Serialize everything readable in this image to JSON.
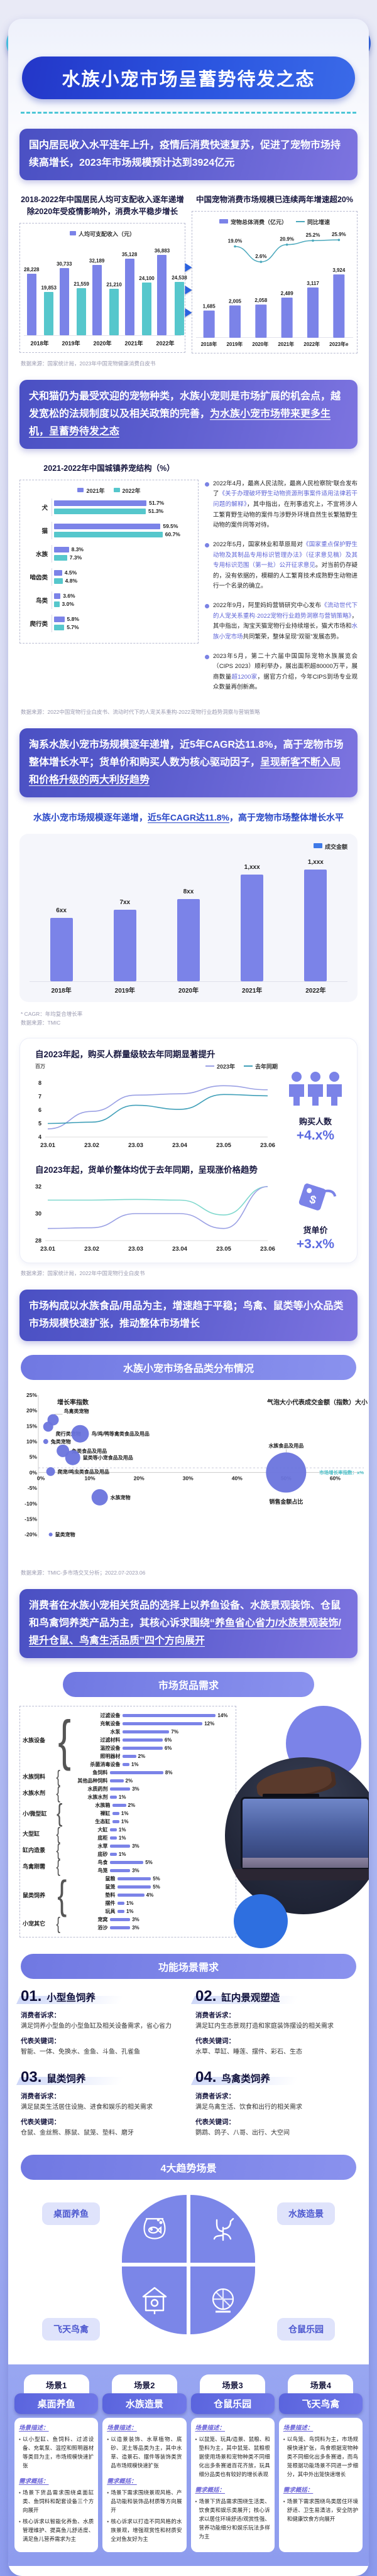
{
  "page_title": "水族小宠市场呈蓄势待发之态",
  "banners": [
    {
      "segments": [
        {
          "t": "国内居民收入水平连年上升，疫情后消费快速复苏，促进了宠物市场持续高增长，2023年市场规模预计达到3924亿元",
          "u": 0
        }
      ]
    },
    {
      "segments": [
        {
          "t": "犬和猫仍为最受欢迎的宠物种类，水族小宠则是市场扩展的机会点，越发宽松的法规制度以及相关政策的完善，",
          "u": 0
        },
        {
          "t": "为水族小宠市场带来更多生机，呈蓄势待发之态",
          "u": 1
        }
      ]
    },
    {
      "segments": [
        {
          "t": "淘系水族小宠市场规模逐年递增，近5年CAGR达11.8%，高于宠物市场整体增长水平；货单价和购买人数为核心驱动因子，",
          "u": 0
        },
        {
          "t": "呈现新客不断入局和价格升级的两大利好趋势",
          "u": 1
        }
      ]
    },
    {
      "segments": [
        {
          "t": "市场构成以水族食品/用品为主，增速趋于平稳；鸟禽、鼠类等小众品类市场规模快速扩张，推动整体市场增长",
          "u": 0
        }
      ]
    },
    {
      "segments": [
        {
          "t": "消费者在水族小宠相关货品的选择上以养鱼设备、水族景观装饰、仓鼠和鸟禽饲养类产品为主，其核心诉求围绕",
          "u": 0
        },
        {
          "t": "“养鱼省心省力/水族景观装饰/提升仓鼠、鸟禽生活品质”四个方向展开",
          "u": 1
        }
      ]
    }
  ],
  "sub3": {
    "segments": [
      {
        "t": "水族小宠市场规模逐年递增，",
        "u": 0
      },
      {
        "t": "近5年CAGR达11.8%",
        "u": 1
      },
      {
        "t": "，高于宠物市场整体增长水平",
        "u": 0
      }
    ]
  },
  "sources": {
    "s1": "数据来源：国家统计局，2023年中国宠物健康消费白皮书",
    "s2": "数据来源：2022中国宠物行业白皮书、流动时代下的人宠关系重构-2022宠物行业趋势洞察与营销策略",
    "s3a": "* CAGR：年均复合增长率",
    "s3b": "数据来源：TMIC",
    "s4": "数据来源：国家统计局，2022年中国宠物行业白皮书",
    "s5": "数据来源：TMIC-多市场交叉分析；2022.07-2023.06"
  },
  "pills": {
    "bubble": "水族小宠市场各品类分布情况",
    "goods": "市场货品需求",
    "func": "功能场景需求",
    "trend": "4大趋势场景"
  },
  "policy": [
    {
      "segments": [
        {
          "t": "2022年4月，最高人民法院，最高人民检察院”联合发布了",
          "h": 0
        },
        {
          "t": "《关于办理破坏野生动物资源刑事案件适用法律若干问题的解释》",
          "h": 1
        },
        {
          "t": "，其中指出，在刑事追究上，不宜将涉人工繁育野生动物的案件与涉野外环境自然生长繁殖野生动物的案件同等对待。",
          "h": 0
        }
      ]
    },
    {
      "segments": [
        {
          "t": "2022年5月，国家林业和草原局对",
          "h": 0
        },
        {
          "t": "《国家重点保护野生动物及其制品专用标识管理办法》（征求意见稿）及其专用标识范围（第一批）公开征求意见",
          "h": 1
        },
        {
          "t": "。对当前仍存疑的，没有依据的，模糊的人工繁育技术成熟野生动物进行一个名录的确立。",
          "h": 0
        }
      ]
    },
    {
      "segments": [
        {
          "t": "2022年9月，阿里妈妈营销研究中心发布",
          "h": 0
        },
        {
          "t": "《流动世代下的人宠关系重构·2022宠物行业趋势洞察与营销策略》",
          "h": 1
        },
        {
          "t": "，其中指出，淘宝天猫宠物行业持续增长，猫犬市场和",
          "h": 0
        },
        {
          "t": "水族小宠市场",
          "h": 1
        },
        {
          "t": "共同繁荣，整体呈现“双驱”发展态势。",
          "h": 0
        }
      ]
    },
    {
      "segments": [
        {
          "t": "2023年5月，第二十六届中国国际宠物水族展览会（CIPS 2023）顺利举办，展出面积超80000万平，展商数量",
          "h": 0
        },
        {
          "t": "超1200家",
          "h": 1
        },
        {
          "t": "，据官方介绍，今年CIPS到场专业观众数量再创新高。",
          "h": 0
        }
      ]
    }
  ],
  "stats": {
    "buyers": {
      "label": "购买人数",
      "value": "+4.x%"
    },
    "price": {
      "label": "货单价",
      "value": "+3.x%"
    }
  },
  "func_labels": {
    "demand": "消费者诉求：",
    "keywords": "代表关键词："
  },
  "func_items": [
    {
      "num": "01.",
      "title": "小型鱼饲养",
      "demand": "满足饲养小型鱼的小型鱼缸及相关设备需求，省心省力",
      "keywords": "智能、一体、免换水、金鱼、斗鱼、孔雀鱼"
    },
    {
      "num": "02.",
      "title": "缸内景观塑造",
      "demand": "满足缸内生态景观打造和家庭装饰摆设的相关需求",
      "keywords": "水草、草缸、睡莲、摆件、彩石、生态"
    },
    {
      "num": "03.",
      "title": "鼠类饲养",
      "demand": "满足鼠类生活居住设施、进食和娱乐的相关需求",
      "keywords": "仓鼠、金丝熊、豚鼠、鼠笼、垫料、磨牙"
    },
    {
      "num": "04.",
      "title": "鸟禽类饲养",
      "demand": "满足鸟禽生活、饮食和出行的相关需求",
      "keywords": "鹦鹉、鸽子、八哥、出行、大空间"
    }
  ],
  "quad_labels": [
    "桌面养鱼",
    "水族造景",
    "飞天鸟禽",
    "仓鼠乐园"
  ],
  "scene_labels": {
    "desc": "场景描述：",
    "needs": "需求概括："
  },
  "scenes": [
    {
      "tag": "场景1",
      "name": "桌面养鱼",
      "desc": [
        "以小型缸、鱼饲料、过滤设备、充氧泵、温控和照明器材等类目为主，市场规模快速扩张"
      ],
      "needs": [
        "场景下货品需求围绕桌面缸类、鱼饲料和配套设备三个方向展开",
        "核心诉求以智能化养鱼、水质管理维护、提高鱼儿舒适度、满足鱼儿营养需求为主"
      ]
    },
    {
      "tag": "场景2",
      "name": "水族造景",
      "desc": [
        "以造景装饰、水草植物、底砂、泥土等品类为主，其中水草、造景石、摆件等装饰类货品市场规模快速扩张"
      ],
      "needs": [
        "场景下需求围绕景观风格、产品功能和装饰品材质等方向展开",
        "核心诉求以打造不同风格的水族景观，增强观赏性和材质安全对鱼友好为主"
      ]
    },
    {
      "tag": "场景3",
      "name": "仓鼠乐园",
      "desc": [
        "以鼠笼、玩具/造景、鼠粮、和垫料为主，其中鼠笼、鼠粮根据使用场景和宠物种类不同细化出多条赛道百花齐放，玩具细分品类也有较好的增长表现"
      ],
      "needs": [
        "场景下货品需求围绕生活类、饮食类和娱乐类展开；核心诉求以居住环境舒适/观赏性强、营养功能细分和娱乐玩法多样为主"
      ]
    },
    {
      "tag": "场景4",
      "name": "飞天鸟禽",
      "desc": [
        "以鸟笼、鸟饲料为主，市场规模快速扩张，鸟食根据宠物种类不同细化出多条赛道，而鸟笼根据功能场景不同进一步细分，其中外出笼快速增长"
      ],
      "needs": [
        "场景下需求围绕鸟类居住环境舒适、卫生易清洁，安全防护和健康饮食方向展开"
      ]
    }
  ],
  "chart_data": [
    {
      "id": "income",
      "type": "bar",
      "title": [
        "2018-2022年中国居民人均可支配收入逐年递增",
        "除2020年受疫情影响外，消费水平稳步增长"
      ],
      "legend": [
        "人均可支配收入（元）"
      ],
      "categories": [
        "2018年",
        "2019年",
        "2020年",
        "2021年",
        "2022年"
      ],
      "series": [
        {
          "name": "人均可支配收入",
          "color": "#7b83e8",
          "values": [
            28228,
            30733,
            32189,
            35128,
            36883
          ],
          "labels": [
            "28,228",
            "30,733",
            "32,189",
            "35,128",
            "36,883"
          ]
        },
        {
          "name": "",
          "color": "#56c7cc",
          "values": [
            19853,
            21559,
            21210,
            24100,
            24538
          ],
          "labels": [
            "19,853",
            "21,559",
            "21,210",
            "24,100",
            "24,538"
          ]
        }
      ],
      "ylim": [
        0,
        40000
      ]
    },
    {
      "id": "pet_market",
      "type": "bar+line",
      "title": "中国宠物消费市场规模已连续两年增速超20%",
      "legend": [
        "宠物总体消费（亿元）",
        "同比增速"
      ],
      "categories": [
        "2018年",
        "2019年",
        "2020年",
        "2021年",
        "2022年",
        "2023年e"
      ],
      "values": [
        1685,
        2005,
        2058,
        2489,
        3117,
        3924
      ],
      "value_labels": [
        "1,685",
        "2,005",
        "2,058",
        "2,489",
        "3,117",
        "3,924"
      ],
      "growth": [
        null,
        19.0,
        2.6,
        20.9,
        25.2,
        25.9
      ],
      "growth_labels": [
        "",
        "19.0%",
        "2.6%",
        "20.9%",
        "25.2%",
        "25.9%"
      ],
      "ylim": [
        0,
        4200
      ]
    },
    {
      "id": "pet_structure",
      "type": "hbar",
      "title": "2021-2022年中国城镇养宠结构（%）",
      "legend": [
        "2021年",
        "2022年"
      ],
      "categories": [
        "犬",
        "猫",
        "水族",
        "啮齿类",
        "鸟类",
        "爬行类"
      ],
      "series": [
        {
          "name": "2021年",
          "color": "#7b83e8",
          "values": [
            51.7,
            59.5,
            8.3,
            4.5,
            3.6,
            5.8
          ]
        },
        {
          "name": "2022年",
          "color": "#56c7cc",
          "values": [
            51.3,
            60.7,
            7.3,
            4.8,
            3.0,
            5.7
          ]
        }
      ],
      "xlim": [
        0,
        65
      ]
    },
    {
      "id": "gmv",
      "type": "bar",
      "legend": [
        "成交金额"
      ],
      "categories": [
        "2018年",
        "2019年",
        "2020年",
        "2021年",
        "2022年"
      ],
      "values": [
        620,
        700,
        800,
        1040,
        1090
      ],
      "value_labels": [
        "6xx",
        "7xx",
        "8xx",
        "1,xxx",
        "1,xxx"
      ]
    },
    {
      "id": "buyers",
      "type": "line",
      "title": "自2023年起，购买人群量级较去年同期显著提升",
      "unit": "百万",
      "legend": [
        "2023年",
        "去年同期"
      ],
      "x": [
        "23.01",
        "23.02",
        "23.03",
        "23.04",
        "23.05",
        "23.06"
      ],
      "series": [
        {
          "name": "2023年",
          "color": "#9aa0e4",
          "values": [
            4.6,
            5.9,
            7.1,
            7.2,
            7.8,
            7.5
          ]
        },
        {
          "name": "去年同期",
          "color": "#3f9fb8",
          "values": [
            5.0,
            5.1,
            6.35,
            6.05,
            7.15,
            7.05
          ]
        }
      ],
      "yticks": [
        8,
        7,
        6,
        5,
        4
      ],
      "ylim": [
        4,
        8
      ]
    },
    {
      "id": "price",
      "type": "line",
      "title": "自2023年起，货单价整体均优于去年同期，呈现涨价格趋势",
      "legend": [],
      "x": [
        "23.01",
        "23.02",
        "23.03",
        "23.04",
        "23.05",
        "23.06"
      ],
      "series": [
        {
          "name": "去年同期",
          "color": "#7fd8cd",
          "values": [
            31.0,
            31.0,
            31.05,
            31.0,
            29.9,
            32.0
          ]
        },
        {
          "name": "2023年",
          "color": "#9aa0e4",
          "values": [
            28.9,
            28.95,
            30.0,
            30.0,
            28.9,
            32.0
          ]
        }
      ],
      "yticks": [
        32,
        30,
        28
      ],
      "ylim": [
        28,
        32
      ]
    },
    {
      "id": "bubble",
      "type": "scatter",
      "ylabel": "增长率指数",
      "xlabel": "销售金额占比",
      "note": "气泡大小代表成交金额（指数）大小",
      "dash_y": 1.5,
      "dash_label": "市场增长率指数：x%",
      "yticks": [
        "25%",
        "20%",
        "15%",
        "10%",
        "5%",
        "0%",
        "-5%",
        "-10%",
        "-15%",
        "-20%"
      ],
      "xticks": [
        "0%",
        "10%",
        "20%",
        "30%",
        "40%",
        "50%",
        "60%"
      ],
      "points": [
        {
          "label": "鸟禽类宠物",
          "x": 2.5,
          "y": 17,
          "r": 9,
          "lpos": "above"
        },
        {
          "label": "爬行类宠物",
          "x": 1.5,
          "y": 14.8,
          "r": 8,
          "lpos": "below"
        },
        {
          "label": "鸟/鸡/鸭等禽类食品及用品",
          "x": 8,
          "y": 12.5,
          "r": 14,
          "lpos": "right"
        },
        {
          "label": "兔类宠物",
          "x": 1,
          "y": 10,
          "r": 4,
          "lpos": "right"
        },
        {
          "label": "兔类食品及用品",
          "x": 4.5,
          "y": 7,
          "r": 10,
          "lpos": "right"
        },
        {
          "label": "鼠类等小宠食品及用品",
          "x": 6.5,
          "y": 4.8,
          "r": 12,
          "lpos": "right"
        },
        {
          "label": "爬宠/鸣虫类食品及用品",
          "x": 2,
          "y": 0.3,
          "r": 7,
          "lpos": "right"
        },
        {
          "label": "水族宠物",
          "x": 12,
          "y": -8,
          "r": 13,
          "lpos": "right"
        },
        {
          "label": "鼠类宠物",
          "x": 2,
          "y": -20,
          "r": 3,
          "lpos": "right"
        },
        {
          "label": "水族食品及用品",
          "x": 50,
          "y": 0,
          "r": 32,
          "lpos": "top-far"
        }
      ]
    },
    {
      "id": "goods",
      "type": "hbar-grouped",
      "max": 14,
      "groups": [
        {
          "group": "水族设备",
          "items": [
            [
              "过滤设备",
              14
            ],
            [
              "充氧设备",
              12
            ],
            [
              "水泵",
              7
            ],
            [
              "过滤材料",
              6
            ],
            [
              "温控设备",
              6
            ],
            [
              "照明器材",
              2
            ],
            [
              "杀菌消毒设备",
              1
            ]
          ]
        },
        {
          "group": "水族饲料",
          "items": [
            [
              "鱼饲料",
              8
            ],
            [
              "其他品种饲料",
              2
            ]
          ]
        },
        {
          "group": "水族水剂",
          "items": [
            [
              "水质药剂",
              3
            ],
            [
              "水族水剂",
              1
            ]
          ]
        },
        {
          "group": "小/微型缸",
          "items": [
            [
              "水族箱",
              2
            ],
            [
              "裸缸",
              1
            ],
            [
              "生态缸",
              1
            ]
          ]
        },
        {
          "group": "大型缸",
          "items": [
            [
              "大缸",
              1
            ],
            [
              "底柜",
              1
            ]
          ]
        },
        {
          "group": "缸内造景",
          "items": [
            [
              "水草",
              3
            ],
            [
              "底砂",
              1
            ]
          ]
        },
        {
          "group": "鸟禽刚需",
          "items": [
            [
              "鸟食",
              5
            ],
            [
              "鸟笼",
              3
            ]
          ]
        },
        {
          "group": "鼠类饲养",
          "items": [
            [
              "鼠粮",
              5
            ],
            [
              "鼠笼",
              5
            ],
            [
              "垫料",
              4
            ],
            [
              "摆件",
              1
            ],
            [
              "玩具",
              1
            ]
          ]
        },
        {
          "group": "小宠其它",
          "items": [
            [
              "宠窝",
              3
            ],
            [
              "浴沙",
              3
            ]
          ]
        }
      ]
    }
  ]
}
